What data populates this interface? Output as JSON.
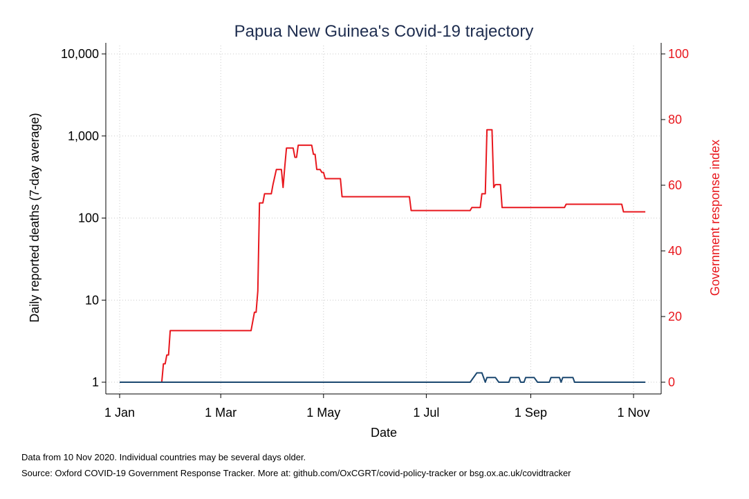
{
  "chart_data": {
    "type": "line",
    "title": "Papua New Guinea's Covid-19 trajectory",
    "xlabel": "Date",
    "ylabel_left": "Daily reported deaths (7-day average)",
    "ylabel_right": "Government response index",
    "x_ticks": [
      {
        "date": "2020-01-01",
        "label": "1 Jan"
      },
      {
        "date": "2020-03-01",
        "label": "1 Mar"
      },
      {
        "date": "2020-05-01",
        "label": "1 May"
      },
      {
        "date": "2020-07-01",
        "label": "1 Jul"
      },
      {
        "date": "2020-09-01",
        "label": "1 Sep"
      },
      {
        "date": "2020-11-01",
        "label": "1 Nov"
      }
    ],
    "xlim": [
      "2020-01-01",
      "2020-11-10"
    ],
    "y_left": {
      "scale": "log",
      "lim": [
        1,
        10000
      ],
      "ticks": [
        {
          "value": 1,
          "label": "1"
        },
        {
          "value": 10,
          "label": "10"
        },
        {
          "value": 100,
          "label": "100"
        },
        {
          "value": 1000,
          "label": "1,000"
        },
        {
          "value": 10000,
          "label": "10,000"
        }
      ]
    },
    "y_right": {
      "scale": "linear",
      "lim": [
        0,
        100
      ],
      "ticks": [
        {
          "value": 0,
          "label": "0"
        },
        {
          "value": 20,
          "label": "20"
        },
        {
          "value": 40,
          "label": "40"
        },
        {
          "value": 60,
          "label": "60"
        },
        {
          "value": 80,
          "label": "80"
        },
        {
          "value": 100,
          "label": "100"
        }
      ]
    },
    "grid": true,
    "series": [
      {
        "axis": "right",
        "color": "#e8171d",
        "step": true,
        "points": [
          [
            "2020-01-01",
            0
          ],
          [
            "2020-01-26",
            0
          ],
          [
            "2020-01-27",
            5.6
          ],
          [
            "2020-01-28",
            5.6
          ],
          [
            "2020-01-29",
            8.3
          ],
          [
            "2020-01-30",
            8.3
          ],
          [
            "2020-01-31",
            15.7
          ],
          [
            "2020-03-19",
            15.7
          ],
          [
            "2020-03-21",
            21.3
          ],
          [
            "2020-03-22",
            21.3
          ],
          [
            "2020-03-23",
            27.8
          ],
          [
            "2020-03-24",
            54.6
          ],
          [
            "2020-03-26",
            54.6
          ],
          [
            "2020-03-27",
            57.4
          ],
          [
            "2020-03-31",
            57.4
          ],
          [
            "2020-04-01",
            60.2
          ],
          [
            "2020-04-03",
            64.8
          ],
          [
            "2020-04-06",
            64.8
          ],
          [
            "2020-04-07",
            59.3
          ],
          [
            "2020-04-08",
            65.7
          ],
          [
            "2020-04-09",
            71.3
          ],
          [
            "2020-04-13",
            71.3
          ],
          [
            "2020-04-14",
            68.5
          ],
          [
            "2020-04-15",
            68.5
          ],
          [
            "2020-04-16",
            72.2
          ],
          [
            "2020-04-24",
            72.2
          ],
          [
            "2020-04-25",
            69.4
          ],
          [
            "2020-04-26",
            69.4
          ],
          [
            "2020-04-27",
            64.8
          ],
          [
            "2020-04-29",
            64.8
          ],
          [
            "2020-04-30",
            63.9
          ],
          [
            "2020-05-01",
            63.9
          ],
          [
            "2020-05-02",
            62.0
          ],
          [
            "2020-05-11",
            62.0
          ],
          [
            "2020-05-12",
            56.5
          ],
          [
            "2020-06-21",
            56.5
          ],
          [
            "2020-06-22",
            52.3
          ],
          [
            "2020-07-27",
            52.3
          ],
          [
            "2020-07-28",
            53.2
          ],
          [
            "2020-08-02",
            53.2
          ],
          [
            "2020-08-03",
            57.4
          ],
          [
            "2020-08-05",
            57.4
          ],
          [
            "2020-08-06",
            76.9
          ],
          [
            "2020-08-09",
            76.9
          ],
          [
            "2020-08-10",
            59.3
          ],
          [
            "2020-08-11",
            60.2
          ],
          [
            "2020-08-14",
            60.2
          ],
          [
            "2020-08-15",
            53.2
          ],
          [
            "2020-09-21",
            53.2
          ],
          [
            "2020-09-22",
            54.2
          ],
          [
            "2020-10-25",
            54.2
          ],
          [
            "2020-10-26",
            51.9
          ],
          [
            "2020-11-08",
            51.9
          ]
        ]
      },
      {
        "axis": "left",
        "color": "#1a476f",
        "step": false,
        "points": [
          [
            "2020-01-01",
            1
          ],
          [
            "2020-07-27",
            1
          ],
          [
            "2020-07-31",
            1.3
          ],
          [
            "2020-08-03",
            1.3
          ],
          [
            "2020-08-05",
            1
          ],
          [
            "2020-08-06",
            1.14
          ],
          [
            "2020-08-11",
            1.14
          ],
          [
            "2020-08-13",
            1
          ],
          [
            "2020-08-19",
            1
          ],
          [
            "2020-08-20",
            1.14
          ],
          [
            "2020-08-25",
            1.14
          ],
          [
            "2020-08-26",
            1
          ],
          [
            "2020-08-28",
            1
          ],
          [
            "2020-08-29",
            1.14
          ],
          [
            "2020-09-03",
            1.14
          ],
          [
            "2020-09-05",
            1
          ],
          [
            "2020-09-12",
            1
          ],
          [
            "2020-09-13",
            1.14
          ],
          [
            "2020-09-18",
            1.14
          ],
          [
            "2020-09-19",
            1
          ],
          [
            "2020-09-20",
            1.14
          ],
          [
            "2020-09-26",
            1.14
          ],
          [
            "2020-09-27",
            1
          ],
          [
            "2020-11-08",
            1
          ]
        ]
      }
    ]
  },
  "notes": {
    "line1": "Data from 10 Nov 2020. Individual countries may be several days older.",
    "line2": "Source: Oxford COVID-19 Government Response Tracker. More at: github.com/OxCGRT/covid-policy-tracker or bsg.ox.ac.uk/covidtracker"
  }
}
